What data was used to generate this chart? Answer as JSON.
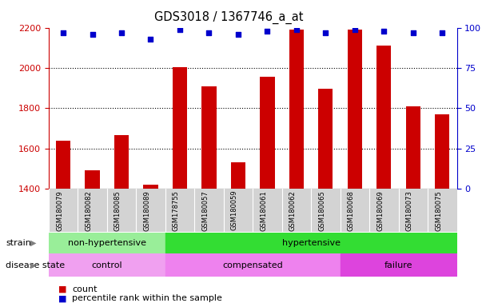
{
  "title": "GDS3018 / 1367746_a_at",
  "samples": [
    "GSM180079",
    "GSM180082",
    "GSM180085",
    "GSM180089",
    "GSM178755",
    "GSM180057",
    "GSM180059",
    "GSM180061",
    "GSM180062",
    "GSM180065",
    "GSM180068",
    "GSM180069",
    "GSM180073",
    "GSM180075"
  ],
  "counts": [
    1640,
    1490,
    1665,
    1420,
    2005,
    1910,
    1530,
    1955,
    2190,
    1895,
    2190,
    2110,
    1810,
    1770
  ],
  "percentile_ranks": [
    97,
    96,
    97,
    93,
    99,
    97,
    96,
    98,
    99,
    97,
    99,
    98,
    97,
    97
  ],
  "ymin": 1400,
  "ymax": 2200,
  "yticks_left": [
    1400,
    1600,
    1800,
    2000,
    2200
  ],
  "yticks_right": [
    0,
    25,
    50,
    75,
    100
  ],
  "bar_color": "#cc0000",
  "dot_color": "#0000cc",
  "strain_groups": [
    {
      "label": "non-hypertensive",
      "start": 0,
      "end": 4,
      "color": "#99ee99"
    },
    {
      "label": "hypertensive",
      "start": 4,
      "end": 14,
      "color": "#33dd33"
    }
  ],
  "disease_groups": [
    {
      "label": "control",
      "start": 0,
      "end": 4,
      "color": "#f0a0f0"
    },
    {
      "label": "compensated",
      "start": 4,
      "end": 10,
      "color": "#ee82ee"
    },
    {
      "label": "failure",
      "start": 10,
      "end": 14,
      "color": "#dd44dd"
    }
  ],
  "legend_count_color": "#cc0000",
  "legend_dot_color": "#0000cc",
  "background_color": "#ffffff",
  "tick_area_color": "#d3d3d3",
  "bar_width": 0.5
}
